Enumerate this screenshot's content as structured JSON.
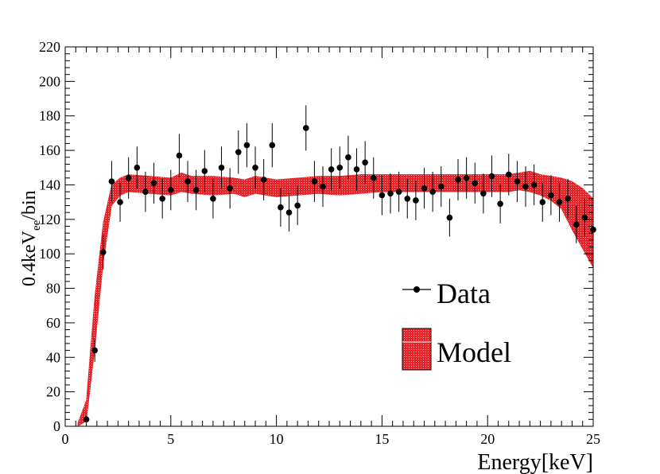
{
  "chart_data": {
    "type": "scatter",
    "title": "",
    "xlabel": "Energy[keV]",
    "ylabel_main": "0.4keV",
    "ylabel_sub": "ee",
    "ylabel_tail": "/bin",
    "xlim": [
      0,
      25
    ],
    "ylim": [
      0,
      220
    ],
    "xticks": [
      0,
      5,
      10,
      15,
      20,
      25
    ],
    "yticks": [
      0,
      20,
      40,
      60,
      80,
      100,
      120,
      140,
      160,
      180,
      200,
      220
    ],
    "legend": {
      "position": "center-right",
      "data_label": "Data",
      "model_label": "Model"
    },
    "colors": {
      "band": "#e8232a",
      "points": "#000000"
    },
    "series": [
      {
        "name": "Data",
        "x": [
          1.0,
          1.4,
          1.8,
          2.2,
          2.6,
          3.0,
          3.4,
          3.8,
          4.2,
          4.6,
          5.0,
          5.4,
          5.8,
          6.2,
          6.6,
          7.0,
          7.4,
          7.8,
          8.2,
          8.6,
          9.0,
          9.4,
          9.8,
          10.2,
          10.6,
          11.0,
          11.4,
          11.8,
          12.2,
          12.6,
          13.0,
          13.4,
          13.8,
          14.2,
          14.6,
          15.0,
          15.4,
          15.8,
          16.2,
          16.6,
          17.0,
          17.4,
          17.8,
          18.2,
          18.6,
          19.0,
          19.4,
          19.8,
          20.2,
          20.6,
          21.0,
          21.4,
          21.8,
          22.2,
          22.6,
          23.0,
          23.4,
          23.8,
          24.2,
          24.6,
          25.0
        ],
        "y": [
          4,
          44,
          101,
          142,
          130,
          144,
          150,
          136,
          141,
          132,
          137,
          157,
          142,
          137,
          148,
          132,
          150,
          138,
          159,
          163,
          150,
          143,
          163,
          127,
          124,
          128,
          173,
          142,
          139,
          149,
          150,
          156,
          149,
          153,
          144,
          134,
          135,
          136,
          132,
          131,
          138,
          136,
          139,
          121,
          143,
          144,
          141,
          135,
          145,
          129,
          146,
          142,
          139,
          140,
          130,
          134,
          130,
          132,
          117,
          121,
          114
        ]
      },
      {
        "name": "Model",
        "x": [
          0.6,
          1.0,
          1.4,
          1.8,
          2.2,
          2.6,
          3.0,
          4.0,
          5.0,
          5.5,
          6.0,
          7.0,
          8.0,
          8.5,
          9.0,
          10.0,
          11.0,
          12.0,
          13.0,
          14.0,
          15.0,
          16.0,
          17.0,
          18.0,
          19.0,
          20.0,
          21.0,
          21.5,
          22.0,
          22.5,
          23.0,
          23.5,
          24.0,
          24.5,
          25.0
        ],
        "low": [
          0,
          3,
          45,
          95,
          128,
          134,
          136,
          135,
          134,
          136,
          135,
          134,
          135,
          133,
          135,
          133,
          134,
          135,
          134,
          135,
          136,
          136,
          136,
          136,
          136,
          136,
          136,
          137,
          136,
          134,
          131,
          126,
          114,
          103,
          92
        ],
        "high": [
          2,
          15,
          75,
          118,
          140,
          144,
          146,
          145,
          144,
          147,
          145,
          145,
          144,
          143,
          145,
          143,
          144,
          145,
          145,
          146,
          146,
          146,
          146,
          146,
          146,
          146,
          146,
          147,
          148,
          146,
          145,
          144,
          142,
          138,
          132
        ]
      }
    ]
  }
}
